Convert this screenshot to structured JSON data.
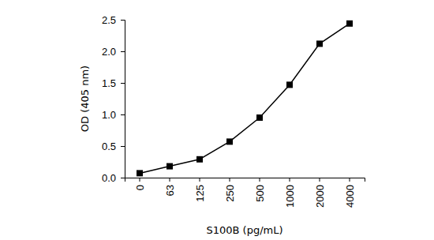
{
  "chart_data": {
    "type": "line",
    "x_label": "S100B (pg/mL)",
    "y_label": "OD (405 nm)",
    "categories": [
      "0",
      "63",
      "125",
      "250",
      "500",
      "1000",
      "2000",
      "4000"
    ],
    "values": [
      0.07,
      0.18,
      0.29,
      0.57,
      0.95,
      1.47,
      2.12,
      2.44
    ],
    "color": "#000000",
    "marker": "square",
    "line_style": "solid",
    "ylim": [
      0,
      2.5
    ],
    "yticks": [
      {
        "value": 0,
        "label": "0.0"
      },
      0.5,
      {
        "value": 1,
        "label": "1.0"
      },
      1.5,
      {
        "value": 2,
        "label": "2.0"
      },
      2.5
    ],
    "grid": false
  }
}
